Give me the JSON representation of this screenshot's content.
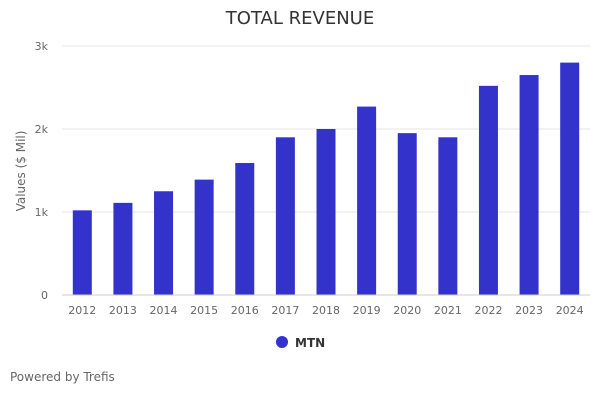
{
  "credit": "Powered by Trefis",
  "chart_data": {
    "type": "bar",
    "title": "TOTAL REVENUE",
    "ylabel": "Values ($ Mil)",
    "xlabel": "",
    "categories": [
      "2012",
      "2013",
      "2014",
      "2015",
      "2016",
      "2017",
      "2018",
      "2019",
      "2020",
      "2021",
      "2022",
      "2023",
      "2024"
    ],
    "series": [
      {
        "name": "MTN",
        "color": "#3333cc",
        "values": [
          1020,
          1110,
          1250,
          1390,
          1590,
          1900,
          2000,
          2270,
          1950,
          1900,
          2520,
          2650,
          2800
        ]
      }
    ],
    "ylim": [
      0,
      3000
    ],
    "yticks": [
      0,
      1000,
      2000,
      3000
    ],
    "ytick_labels": [
      "0",
      "1k",
      "2k",
      "3k"
    ],
    "grid": true,
    "legend_position": "bottom-center"
  }
}
